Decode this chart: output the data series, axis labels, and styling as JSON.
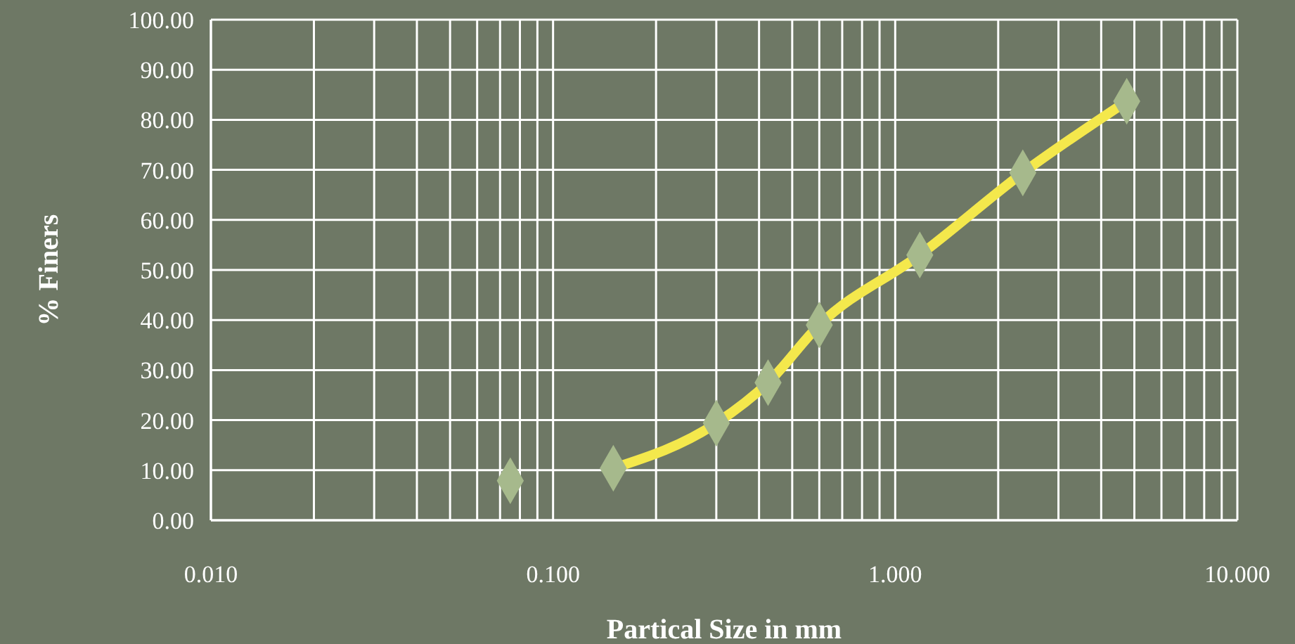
{
  "chart_data": {
    "type": "line",
    "xlabel": "Partical Size in mm",
    "ylabel": "% Finers",
    "log": "x",
    "grid": true,
    "legend": false,
    "xlim": [
      0.01,
      10
    ],
    "xticks": [
      {
        "value": 0.01,
        "label": "0.010"
      },
      {
        "value": 0.02,
        "label": null
      },
      {
        "value": 0.03,
        "label": null
      },
      {
        "value": 0.04,
        "label": null
      },
      {
        "value": 0.05,
        "label": null
      },
      {
        "value": 0.06,
        "label": null
      },
      {
        "value": 0.07,
        "label": null
      },
      {
        "value": 0.08,
        "label": null
      },
      {
        "value": 0.09,
        "label": null
      },
      {
        "value": 0.1,
        "label": "0.100"
      },
      {
        "value": 0.2,
        "label": null
      },
      {
        "value": 0.3,
        "label": null
      },
      {
        "value": 0.4,
        "label": null
      },
      {
        "value": 0.5,
        "label": null
      },
      {
        "value": 0.6,
        "label": null
      },
      {
        "value": 0.7,
        "label": null
      },
      {
        "value": 0.8,
        "label": null
      },
      {
        "value": 0.9,
        "label": null
      },
      {
        "value": 1,
        "label": "1.000"
      },
      {
        "value": 2,
        "label": null
      },
      {
        "value": 3,
        "label": null
      },
      {
        "value": 4,
        "label": null
      },
      {
        "value": 5,
        "label": null
      },
      {
        "value": 6,
        "label": null
      },
      {
        "value": 7,
        "label": null
      },
      {
        "value": 8,
        "label": null
      },
      {
        "value": 9,
        "label": null
      },
      {
        "value": 10,
        "label": "10.000"
      }
    ],
    "ylim": [
      0,
      100
    ],
    "yticks": [
      {
        "value": 0,
        "label": "0.00"
      },
      {
        "value": 10,
        "label": "10.00"
      },
      {
        "value": 20,
        "label": "20.00"
      },
      {
        "value": 30,
        "label": "30.00"
      },
      {
        "value": 40,
        "label": "40.00"
      },
      {
        "value": 50,
        "label": "50.00"
      },
      {
        "value": 60,
        "label": "60.00"
      },
      {
        "value": 70,
        "label": "70.00"
      },
      {
        "value": 80,
        "label": "80.00"
      },
      {
        "value": 90,
        "label": "90.00"
      },
      {
        "value": 100,
        "label": "100.00"
      }
    ],
    "series": [
      {
        "color": "#f4e84c",
        "marker": "none",
        "line_style": "solid",
        "x": [
          0.15,
          0.3,
          0.425,
          0.6,
          1.18,
          2.36,
          4.75
        ],
        "values": [
          10.4,
          19.4,
          27.5,
          39,
          53,
          69.4,
          83.7
        ]
      },
      {
        "type": "scatter",
        "color": "#a6b98c",
        "marker": "diamond",
        "x": [
          0.075,
          0.15,
          0.3,
          0.425,
          0.6,
          1.18,
          2.36,
          4.75
        ],
        "values": [
          7.9,
          10.4,
          19.4,
          27.5,
          39,
          53,
          69.4,
          83.7
        ]
      }
    ]
  }
}
